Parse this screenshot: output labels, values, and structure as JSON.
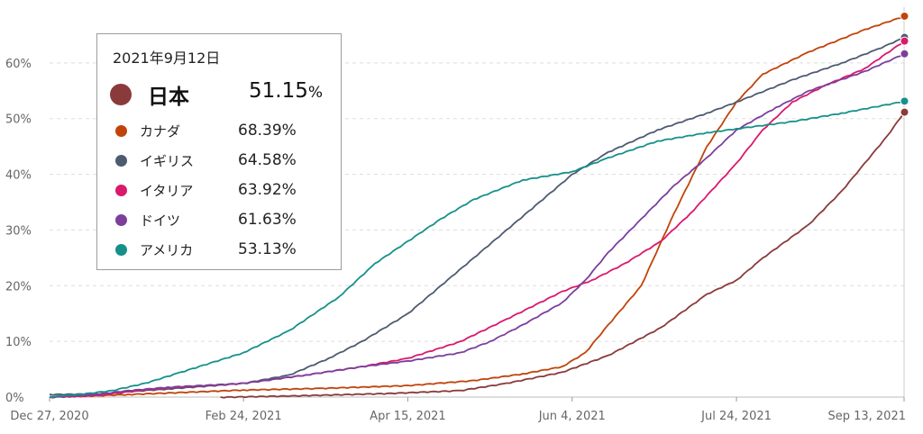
{
  "chart_data": {
    "type": "line",
    "title": "",
    "xlabel": "",
    "ylabel": "",
    "ylim": [
      0,
      70
    ],
    "yticks": [
      "0%",
      "10%",
      "20%",
      "30%",
      "40%",
      "50%",
      "60%"
    ],
    "xticks": [
      "Dec 27, 2020",
      "Feb 24, 2021",
      "Apr 15, 2021",
      "Jun 4, 2021",
      "Jul 24, 2021",
      "Sep 13, 2021"
    ],
    "grid": "horizontal dashed",
    "legend_position": "top-left",
    "legend": {
      "date": "2021年9月12日",
      "highlight": {
        "name": "日本",
        "value": "51.15",
        "unit": "%"
      },
      "rows": [
        {
          "name": "カナダ",
          "value": "68.39%"
        },
        {
          "name": "イギリス",
          "value": "64.58%"
        },
        {
          "name": "イタリア",
          "value": "63.92%"
        },
        {
          "name": "ドイツ",
          "value": "61.63%"
        },
        {
          "name": "アメリカ",
          "value": "53.13%"
        }
      ]
    },
    "series": [
      {
        "name": "日本",
        "color": "#8a3a3a",
        "points": [
          [
            "2021-02-17",
            0
          ],
          [
            "2021-03-15",
            0.3
          ],
          [
            "2021-04-10",
            0.7
          ],
          [
            "2021-05-01",
            1.2
          ],
          [
            "2021-05-15",
            2.5
          ],
          [
            "2021-06-01",
            4.5
          ],
          [
            "2021-06-15",
            7.5
          ],
          [
            "2021-07-01",
            12.5
          ],
          [
            "2021-07-15",
            18.5
          ],
          [
            "2021-07-24",
            21
          ],
          [
            "2021-08-01",
            25
          ],
          [
            "2021-08-15",
            31
          ],
          [
            "2021-08-25",
            37
          ],
          [
            "2021-09-01",
            42
          ],
          [
            "2021-09-08",
            47
          ],
          [
            "2021-09-13",
            51.15
          ]
        ]
      },
      {
        "name": "カナダ",
        "color": "#c0440a",
        "points": [
          [
            "2021-01-01",
            0.1
          ],
          [
            "2021-01-20",
            0.5
          ],
          [
            "2021-02-24",
            1.3
          ],
          [
            "2021-03-20",
            1.6
          ],
          [
            "2021-04-15",
            2.1
          ],
          [
            "2021-05-05",
            3
          ],
          [
            "2021-05-20",
            4.2
          ],
          [
            "2021-06-01",
            5.5
          ],
          [
            "2021-06-08",
            8
          ],
          [
            "2021-06-15",
            13
          ],
          [
            "2021-06-25",
            20
          ],
          [
            "2021-07-05",
            33
          ],
          [
            "2021-07-15",
            45
          ],
          [
            "2021-07-24",
            53
          ],
          [
            "2021-08-01",
            58
          ],
          [
            "2021-08-15",
            62
          ],
          [
            "2021-09-01",
            66
          ],
          [
            "2021-09-13",
            68.39
          ]
        ]
      },
      {
        "name": "イギリス",
        "color": "#4d5a70",
        "points": [
          [
            "2020-12-27",
            0.5
          ],
          [
            "2021-01-10",
            0.6
          ],
          [
            "2021-01-20",
            1
          ],
          [
            "2021-02-01",
            1.5
          ],
          [
            "2021-02-24",
            2.5
          ],
          [
            "2021-03-10",
            4
          ],
          [
            "2021-03-22",
            7
          ],
          [
            "2021-04-01",
            10
          ],
          [
            "2021-04-15",
            15
          ],
          [
            "2021-04-25",
            20
          ],
          [
            "2021-05-05",
            25
          ],
          [
            "2021-05-15",
            30
          ],
          [
            "2021-05-25",
            35
          ],
          [
            "2021-06-04",
            40
          ],
          [
            "2021-06-15",
            44
          ],
          [
            "2021-06-30",
            48
          ],
          [
            "2021-07-15",
            51
          ],
          [
            "2021-07-24",
            53
          ],
          [
            "2021-08-10",
            57
          ],
          [
            "2021-08-25",
            60
          ],
          [
            "2021-09-05",
            62.5
          ],
          [
            "2021-09-13",
            64.58
          ]
        ]
      },
      {
        "name": "イタリア",
        "color": "#d9196c",
        "points": [
          [
            "2020-12-27",
            0
          ],
          [
            "2021-01-10",
            0.3
          ],
          [
            "2021-01-20",
            1
          ],
          [
            "2021-02-01",
            1.7
          ],
          [
            "2021-02-24",
            2.5
          ],
          [
            "2021-03-15",
            4
          ],
          [
            "2021-04-01",
            5.5
          ],
          [
            "2021-04-15",
            7
          ],
          [
            "2021-05-01",
            10
          ],
          [
            "2021-05-15",
            14
          ],
          [
            "2021-06-01",
            19
          ],
          [
            "2021-06-10",
            21
          ],
          [
            "2021-06-20",
            24
          ],
          [
            "2021-07-01",
            28
          ],
          [
            "2021-07-10",
            33
          ],
          [
            "2021-07-24",
            42
          ],
          [
            "2021-08-01",
            48
          ],
          [
            "2021-08-10",
            53
          ],
          [
            "2021-08-20",
            56
          ],
          [
            "2021-09-01",
            59
          ],
          [
            "2021-09-13",
            63.92
          ]
        ]
      },
      {
        "name": "ドイツ",
        "color": "#7c3f9c",
        "points": [
          [
            "2020-12-27",
            0
          ],
          [
            "2021-01-10",
            0.5
          ],
          [
            "2021-01-20",
            1.2
          ],
          [
            "2021-02-01",
            1.8
          ],
          [
            "2021-02-24",
            2.5
          ],
          [
            "2021-03-15",
            4
          ],
          [
            "2021-04-01",
            5.5
          ],
          [
            "2021-04-15",
            6.5
          ],
          [
            "2021-05-01",
            8
          ],
          [
            "2021-05-10",
            10
          ],
          [
            "2021-05-20",
            13
          ],
          [
            "2021-06-01",
            17
          ],
          [
            "2021-06-08",
            21
          ],
          [
            "2021-06-15",
            26
          ],
          [
            "2021-06-25",
            32
          ],
          [
            "2021-07-05",
            38
          ],
          [
            "2021-07-15",
            43
          ],
          [
            "2021-07-24",
            48
          ],
          [
            "2021-08-05",
            52
          ],
          [
            "2021-08-15",
            55
          ],
          [
            "2021-09-01",
            58.5
          ],
          [
            "2021-09-13",
            61.63
          ]
        ]
      },
      {
        "name": "アメリカ",
        "color": "#16918a",
        "points": [
          [
            "2020-12-27",
            0.1
          ],
          [
            "2021-01-05",
            0.5
          ],
          [
            "2021-01-15",
            1.2
          ],
          [
            "2021-01-25",
            2.5
          ],
          [
            "2021-02-05",
            4.5
          ],
          [
            "2021-02-24",
            8
          ],
          [
            "2021-03-10",
            12
          ],
          [
            "2021-03-25",
            18
          ],
          [
            "2021-04-05",
            24
          ],
          [
            "2021-04-15",
            28
          ],
          [
            "2021-04-25",
            32
          ],
          [
            "2021-05-05",
            35.5
          ],
          [
            "2021-05-20",
            39
          ],
          [
            "2021-06-04",
            40.5
          ],
          [
            "2021-06-15",
            43
          ],
          [
            "2021-06-30",
            46
          ],
          [
            "2021-07-15",
            47.5
          ],
          [
            "2021-07-24",
            48.2
          ],
          [
            "2021-08-10",
            49.5
          ],
          [
            "2021-08-25",
            51
          ],
          [
            "2021-09-13",
            53.13
          ]
        ]
      }
    ]
  }
}
